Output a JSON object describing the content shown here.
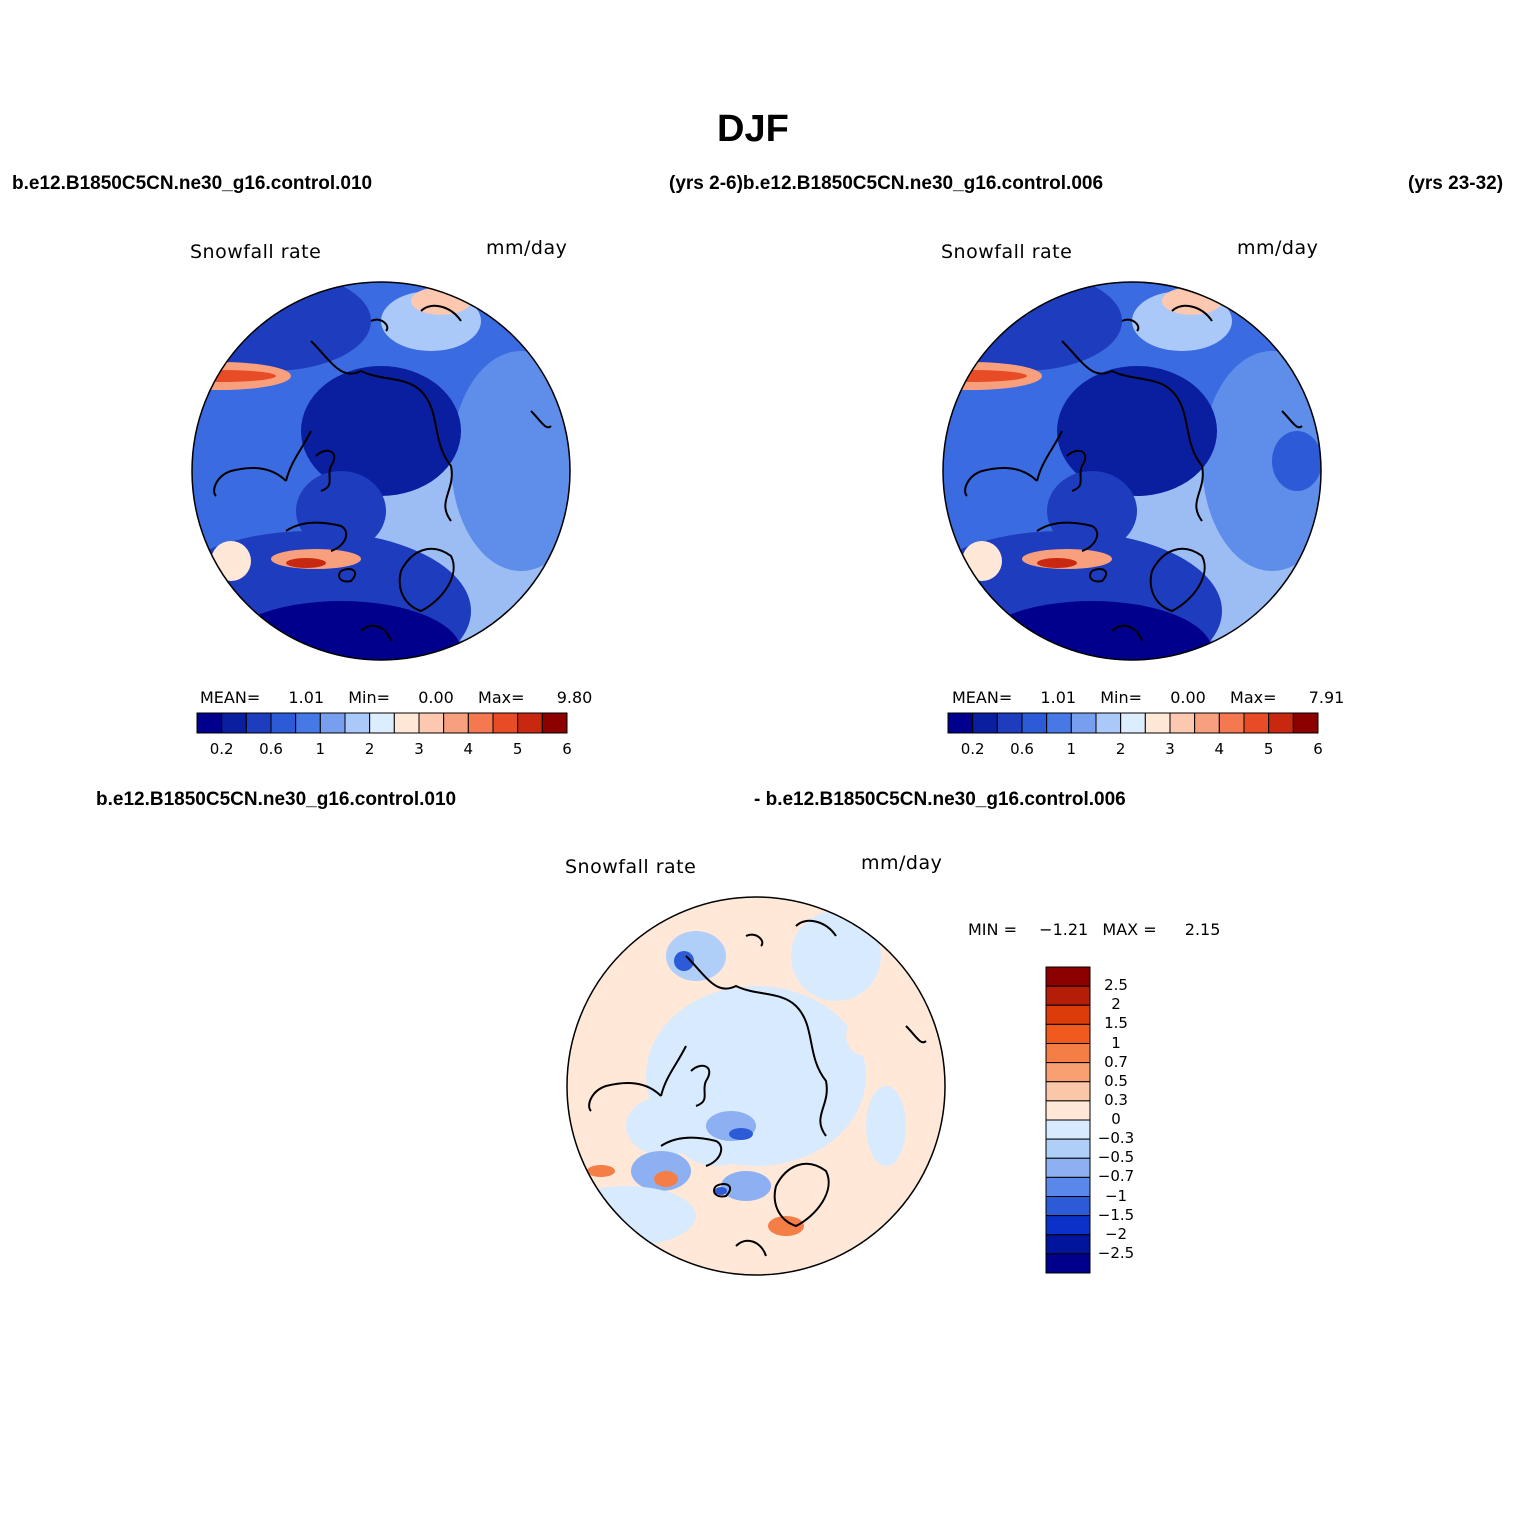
{
  "figure": {
    "title": "DJF",
    "case_labels": {
      "top_left": "b.e12.B1850C5CN.ne30_g16.control.010",
      "top_mid": "(yrs 2-6)b.e12.B1850C5CN.ne30_g16.control.006",
      "top_right": "(yrs 23-32)",
      "bottom_left": "b.e12.B1850C5CN.ne30_g16.control.010",
      "bottom_mid": "- b.e12.B1850C5CN.ne30_g16.control.006"
    }
  },
  "panels": [
    {
      "id": "panel-1",
      "variable": "Snowfall rate",
      "units": "mm/day",
      "stats": {
        "mean_label": "MEAN=",
        "mean": "1.01",
        "min_label": "Min=",
        "min": "0.00",
        "max_label": "Max=",
        "max": "9.80"
      }
    },
    {
      "id": "panel-2",
      "variable": "Snowfall rate",
      "units": "mm/day",
      "stats": {
        "mean_label": "MEAN=",
        "mean": "1.01",
        "min_label": "Min=",
        "min": "0.00",
        "max_label": "Max=",
        "max": "7.91"
      }
    },
    {
      "id": "panel-diff",
      "variable": "Snowfall rate",
      "units": "mm/day",
      "stats": {
        "min_label": "MIN =",
        "min": "−1.21",
        "max_label": "MAX =",
        "max": "2.15"
      }
    }
  ],
  "colorbars": {
    "absolute": {
      "colors": [
        "#00008c",
        "#0a1ea0",
        "#1e3cbe",
        "#2d5ad7",
        "#4678e6",
        "#789ef0",
        "#aac8f8",
        "#dceefe",
        "#ffe8d8",
        "#fcc8b0",
        "#f8a07e",
        "#f47850",
        "#e84c26",
        "#c82810",
        "#8c0000"
      ],
      "tick_labels": [
        "0.2",
        "0.6",
        "1",
        "2",
        "3",
        "4",
        "5",
        "6"
      ]
    },
    "difference": {
      "colors": [
        "#8c0000",
        "#b41e08",
        "#dc3c0a",
        "#f05a1e",
        "#f57d46",
        "#f8a072",
        "#fac8a8",
        "#ffe8d8",
        "#d8eafe",
        "#b0cff8",
        "#8cb0f2",
        "#5a88ea",
        "#2d5ad7",
        "#0a32c8",
        "#00149c",
        "#00008c"
      ],
      "tick_labels": [
        "2.5",
        "2",
        "1.5",
        "1",
        "0.7",
        "0.5",
        "0.3",
        "0",
        "−0.3",
        "−0.5",
        "−0.7",
        "−1",
        "−1.5",
        "−2",
        "−2.5"
      ]
    }
  }
}
